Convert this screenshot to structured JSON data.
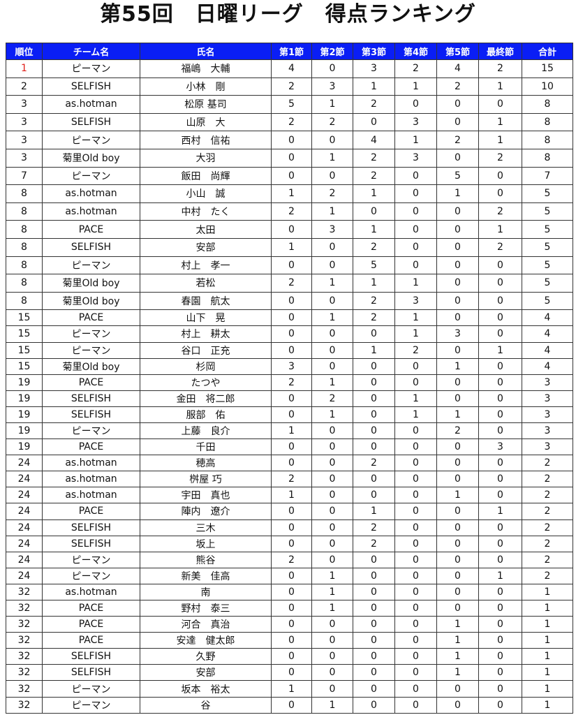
{
  "title": "第55回　日曜リーグ　得点ランキング",
  "colors": {
    "header_bg": "#0a1ef5",
    "first_rank": "#e0201a"
  },
  "headers": [
    "順位",
    "チーム名",
    "氏名",
    "第1節",
    "第2節",
    "第3節",
    "第4節",
    "第5節",
    "最終節",
    "合計"
  ],
  "rows": [
    [
      "1",
      "ピーマン",
      "福嶋　大輔",
      "4",
      "0",
      "3",
      "2",
      "4",
      "2",
      "15"
    ],
    [
      "2",
      "SELFISH",
      "小林　剛",
      "2",
      "3",
      "1",
      "1",
      "2",
      "1",
      "10"
    ],
    [
      "3",
      "as.hotman",
      "松原 基司",
      "5",
      "1",
      "2",
      "0",
      "0",
      "0",
      "8"
    ],
    [
      "3",
      "SELFISH",
      "山原　大",
      "2",
      "2",
      "0",
      "3",
      "0",
      "1",
      "8"
    ],
    [
      "3",
      "ピーマン",
      "西村　信祐",
      "0",
      "0",
      "4",
      "1",
      "2",
      "1",
      "8"
    ],
    [
      "3",
      "菊里Old boy",
      "大羽",
      "0",
      "1",
      "2",
      "3",
      "0",
      "2",
      "8"
    ],
    [
      "7",
      "ピーマン",
      "飯田　尚輝",
      "0",
      "0",
      "2",
      "0",
      "5",
      "0",
      "7"
    ],
    [
      "8",
      "as.hotman",
      "小山　誠",
      "1",
      "2",
      "1",
      "0",
      "1",
      "0",
      "5"
    ],
    [
      "8",
      "as.hotman",
      "中村　たく",
      "2",
      "1",
      "0",
      "0",
      "0",
      "2",
      "5"
    ],
    [
      "8",
      "PACE",
      "太田",
      "0",
      "3",
      "1",
      "0",
      "0",
      "1",
      "5"
    ],
    [
      "8",
      "SELFISH",
      "安部",
      "1",
      "0",
      "2",
      "0",
      "0",
      "2",
      "5"
    ],
    [
      "8",
      "ピーマン",
      "村上　孝一",
      "0",
      "0",
      "5",
      "0",
      "0",
      "0",
      "5"
    ],
    [
      "8",
      "菊里Old boy",
      "若松",
      "2",
      "1",
      "1",
      "1",
      "0",
      "0",
      "5"
    ],
    [
      "8",
      "菊里Old boy",
      "春園　航太",
      "0",
      "0",
      "2",
      "3",
      "0",
      "0",
      "5"
    ],
    [
      "15",
      "PACE",
      "山下　晃",
      "0",
      "1",
      "2",
      "1",
      "0",
      "0",
      "4"
    ],
    [
      "15",
      "ピーマン",
      "村上　耕太",
      "0",
      "0",
      "0",
      "1",
      "3",
      "0",
      "4"
    ],
    [
      "15",
      "ピーマン",
      "谷口　正充",
      "0",
      "0",
      "1",
      "2",
      "0",
      "1",
      "4"
    ],
    [
      "15",
      "菊里Old boy",
      "杉岡",
      "3",
      "0",
      "0",
      "0",
      "1",
      "0",
      "4"
    ],
    [
      "19",
      "PACE",
      "たつや",
      "2",
      "1",
      "0",
      "0",
      "0",
      "0",
      "3"
    ],
    [
      "19",
      "SELFISH",
      "金田　将二郎",
      "0",
      "2",
      "0",
      "1",
      "0",
      "0",
      "3"
    ],
    [
      "19",
      "SELFISH",
      "服部　佑",
      "0",
      "1",
      "0",
      "1",
      "1",
      "0",
      "3"
    ],
    [
      "19",
      "ピーマン",
      "上藤　良介",
      "1",
      "0",
      "0",
      "0",
      "2",
      "0",
      "3"
    ],
    [
      "19",
      "PACE",
      "千田",
      "0",
      "0",
      "0",
      "0",
      "0",
      "3",
      "3"
    ],
    [
      "24",
      "as.hotman",
      "穂高",
      "0",
      "0",
      "2",
      "0",
      "0",
      "0",
      "2"
    ],
    [
      "24",
      "as.hotman",
      "桝屋 巧",
      "2",
      "0",
      "0",
      "0",
      "0",
      "0",
      "2"
    ],
    [
      "24",
      "as.hotman",
      "宇田　真也",
      "1",
      "0",
      "0",
      "0",
      "1",
      "0",
      "2"
    ],
    [
      "24",
      "PACE",
      "陣内　遼介",
      "0",
      "0",
      "1",
      "0",
      "0",
      "1",
      "2"
    ],
    [
      "24",
      "SELFISH",
      "三木",
      "0",
      "0",
      "2",
      "0",
      "0",
      "0",
      "2"
    ],
    [
      "24",
      "SELFISH",
      "坂上",
      "0",
      "0",
      "2",
      "0",
      "0",
      "0",
      "2"
    ],
    [
      "24",
      "ピーマン",
      "熊谷",
      "2",
      "0",
      "0",
      "0",
      "0",
      "0",
      "2"
    ],
    [
      "24",
      "ピーマン",
      "新美　佳高",
      "0",
      "1",
      "0",
      "0",
      "0",
      "1",
      "2"
    ],
    [
      "32",
      "as.hotman",
      "南",
      "0",
      "1",
      "0",
      "0",
      "0",
      "0",
      "1"
    ],
    [
      "32",
      "PACE",
      "野村　泰三",
      "0",
      "1",
      "0",
      "0",
      "0",
      "0",
      "1"
    ],
    [
      "32",
      "PACE",
      "河合　真治",
      "0",
      "0",
      "0",
      "0",
      "1",
      "0",
      "1"
    ],
    [
      "32",
      "PACE",
      "安達　健太郎",
      "0",
      "0",
      "0",
      "0",
      "1",
      "0",
      "1"
    ],
    [
      "32",
      "SELFISH",
      "久野",
      "0",
      "0",
      "0",
      "0",
      "1",
      "0",
      "1"
    ],
    [
      "32",
      "SELFISH",
      "安部",
      "0",
      "0",
      "0",
      "0",
      "1",
      "0",
      "1"
    ],
    [
      "32",
      "ピーマン",
      "坂本　裕太",
      "1",
      "0",
      "0",
      "0",
      "0",
      "0",
      "1"
    ],
    [
      "32",
      "ピーマン",
      "谷",
      "0",
      "1",
      "0",
      "0",
      "0",
      "0",
      "1"
    ]
  ]
}
